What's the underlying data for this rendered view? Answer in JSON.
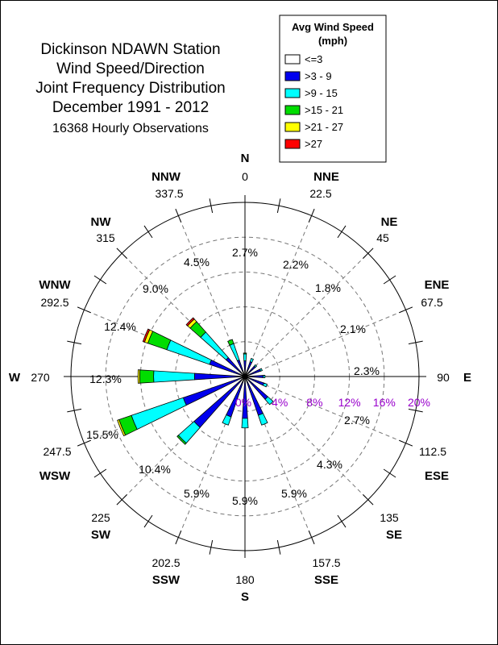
{
  "chart_data": {
    "type": "wind-rose",
    "title": [
      "Dickinson NDAWN Station",
      "Wind Speed/Direction",
      "Joint Frequency Distribution",
      "December 1991 - 2012"
    ],
    "subtitle": "16368 Hourly Observations",
    "legend": {
      "title": [
        "Avg Wind Speed",
        "(mph)"
      ],
      "placement": "top-right",
      "items": [
        {
          "label": "<=3",
          "color": "#ffffff"
        },
        {
          "label": ">3 - 9",
          "color": "#0000ee"
        },
        {
          "label": ">9 - 15",
          "color": "#00ffff"
        },
        {
          "label": ">15 - 21",
          "color": "#00dd00"
        },
        {
          "label": ">21 - 27",
          "color": "#ffff00"
        },
        {
          "label": ">27",
          "color": "#ff0000"
        }
      ]
    },
    "ring_labels": [
      "0%",
      "4%",
      "8%",
      "12%",
      "16%",
      "20%"
    ],
    "ring_values": [
      0,
      4,
      8,
      12,
      16,
      20
    ],
    "directions": [
      {
        "name": "N",
        "degree": "0",
        "degree_value": 0,
        "total_label": "2.7%",
        "total": 2.7,
        "segments": [
          0.3,
          1.5,
          0.8,
          0.1,
          0,
          0
        ]
      },
      {
        "name": "NNE",
        "degree": "22.5",
        "degree_value": 22.5,
        "total_label": "2.2%",
        "total": 2.2,
        "segments": [
          0.3,
          1.5,
          0.4,
          0,
          0,
          0
        ]
      },
      {
        "name": "NE",
        "degree": "45",
        "degree_value": 45,
        "total_label": "1.8%",
        "total": 1.8,
        "segments": [
          0.3,
          1.3,
          0.2,
          0,
          0,
          0
        ]
      },
      {
        "name": "ENE",
        "degree": "67.5",
        "degree_value": 67.5,
        "total_label": "2.1%",
        "total": 2.1,
        "segments": [
          0.3,
          1.6,
          0.2,
          0,
          0,
          0
        ]
      },
      {
        "name": "E",
        "degree": "90",
        "degree_value": 90,
        "total_label": "2.3%",
        "total": 2.3,
        "segments": [
          0.3,
          1.8,
          0.2,
          0,
          0,
          0
        ]
      },
      {
        "name": "ESE",
        "degree": "112.5",
        "degree_value": 112.5,
        "total_label": "2.7%",
        "total": 2.7,
        "segments": [
          0.3,
          2.0,
          0.4,
          0,
          0,
          0
        ]
      },
      {
        "name": "SE",
        "degree": "135",
        "degree_value": 135,
        "total_label": "4.3%",
        "total": 4.3,
        "segments": [
          0.3,
          3.2,
          0.8,
          0,
          0,
          0
        ]
      },
      {
        "name": "SSE",
        "degree": "157.5",
        "degree_value": 157.5,
        "total_label": "5.9%",
        "total": 5.9,
        "segments": [
          0.3,
          4.4,
          1.2,
          0,
          0,
          0
        ]
      },
      {
        "name": "S",
        "degree": "180",
        "degree_value": 180,
        "total_label": "5.9%",
        "total": 5.9,
        "segments": [
          0.3,
          4.5,
          1.1,
          0,
          0,
          0
        ]
      },
      {
        "name": "SSW",
        "degree": "202.5",
        "degree_value": 202.5,
        "total_label": "5.9%",
        "total": 5.9,
        "segments": [
          0.3,
          4.6,
          1.0,
          0,
          0,
          0
        ]
      },
      {
        "name": "SW",
        "degree": "225",
        "degree_value": 225,
        "total_label": "10.4%",
        "total": 10.4,
        "segments": [
          0.3,
          7.5,
          2.4,
          0.2,
          0,
          0
        ]
      },
      {
        "name": "WSW",
        "degree": "247.5",
        "degree_value": 247.5,
        "total_label": "15.5%",
        "total": 15.5,
        "segments": [
          0.3,
          7.2,
          6.3,
          1.5,
          0.2,
          0
        ]
      },
      {
        "name": "W",
        "degree": "270",
        "degree_value": 270,
        "total_label": "12.3%",
        "total": 12.3,
        "segments": [
          0.3,
          5.5,
          4.7,
          1.6,
          0.2,
          0
        ]
      },
      {
        "name": "WNW",
        "degree": "292.5",
        "degree_value": 292.5,
        "total_label": "12.4%",
        "total": 12.4,
        "segments": [
          0.3,
          4.0,
          5.2,
          2.3,
          0.4,
          0.2
        ]
      },
      {
        "name": "NW",
        "degree": "315",
        "degree_value": 315,
        "total_label": "9.0%",
        "total": 9.0,
        "segments": [
          0.3,
          2.6,
          3.9,
          1.6,
          0.4,
          0.2
        ]
      },
      {
        "name": "NNW",
        "degree": "337.5",
        "degree_value": 337.5,
        "total_label": "4.5%",
        "total": 4.5,
        "segments": [
          0.3,
          1.7,
          2.0,
          0.5,
          0,
          0
        ]
      }
    ]
  }
}
